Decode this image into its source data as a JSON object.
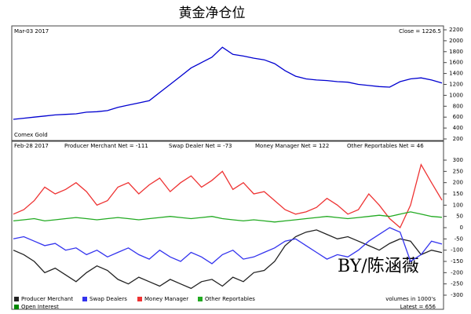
{
  "title": "黄金净仓位",
  "watermark": "BY/陈涵薇",
  "chart_data": [
    {
      "type": "line",
      "annotations": [
        "Mar-03 2017",
        "Close = 1226.5",
        "Comex Gold"
      ],
      "categories": [
        null,
        null,
        null,
        null,
        null,
        null,
        null,
        null,
        null,
        null,
        null,
        null,
        null,
        null,
        null,
        null,
        null,
        null,
        null,
        null,
        null,
        null,
        null,
        null,
        null,
        null,
        null,
        null,
        null,
        null,
        null,
        null,
        null,
        null,
        null,
        null,
        null,
        null,
        null,
        null,
        null,
        null
      ],
      "series": [
        {
          "name": "Comex Gold",
          "color": "#0000d0",
          "values": [
            560,
            580,
            600,
            620,
            640,
            650,
            660,
            690,
            700,
            720,
            780,
            820,
            860,
            900,
            1050,
            1200,
            1350,
            1500,
            1600,
            1700,
            1880,
            1750,
            1720,
            1680,
            1650,
            1580,
            1450,
            1350,
            1300,
            1280,
            1270,
            1250,
            1240,
            1200,
            1180,
            1160,
            1150,
            1250,
            1300,
            1320,
            1280,
            1226.5
          ]
        }
      ],
      "ylim": [
        200,
        2200
      ],
      "yticks": [
        200,
        400,
        600,
        800,
        1000,
        1200,
        1400,
        1600,
        1800,
        2000,
        2200
      ],
      "grid": false
    },
    {
      "type": "line",
      "annotations": [
        "Feb-28 2017",
        "Producer Merchant Net = -111",
        "Swap Dealer Net = -73",
        "Money Manager Net = 122",
        "Other Reportables Net = 46",
        "volumes in 1000's",
        "Latest = 656"
      ],
      "categories": [
        null,
        null,
        null,
        null,
        null,
        null,
        null,
        null,
        null,
        null,
        null,
        null,
        null,
        null,
        null,
        null,
        null,
        null,
        null,
        null,
        null,
        null,
        null,
        null,
        null,
        null,
        null,
        null,
        null,
        null,
        null,
        null,
        null,
        null,
        null,
        null,
        null,
        null,
        null,
        null,
        null,
        null
      ],
      "series": [
        {
          "name": "Producer Merchant",
          "color": "#222222",
          "values": [
            -100,
            -120,
            -150,
            -200,
            -180,
            -210,
            -240,
            -200,
            -170,
            -190,
            -230,
            -250,
            -220,
            -240,
            -260,
            -230,
            -250,
            -270,
            -240,
            -230,
            -260,
            -220,
            -240,
            -200,
            -190,
            -150,
            -80,
            -40,
            -20,
            -10,
            -30,
            -50,
            -40,
            -60,
            -80,
            -100,
            -70,
            -50,
            -60,
            -120,
            -100,
            -111
          ]
        },
        {
          "name": "Swap Dealers",
          "color": "#3333ee",
          "values": [
            -50,
            -40,
            -60,
            -80,
            -70,
            -100,
            -90,
            -120,
            -100,
            -130,
            -110,
            -90,
            -120,
            -140,
            -100,
            -130,
            -150,
            -110,
            -130,
            -160,
            -120,
            -100,
            -140,
            -130,
            -110,
            -90,
            -60,
            -50,
            -80,
            -110,
            -140,
            -120,
            -130,
            -100,
            -60,
            -30,
            0,
            -20,
            -150,
            -120,
            -60,
            -73
          ]
        },
        {
          "name": "Money Manager",
          "color": "#ee3333",
          "values": [
            60,
            80,
            120,
            180,
            150,
            170,
            200,
            160,
            100,
            120,
            180,
            200,
            150,
            190,
            220,
            160,
            200,
            230,
            180,
            210,
            250,
            170,
            200,
            150,
            160,
            120,
            80,
            60,
            70,
            90,
            130,
            100,
            60,
            80,
            150,
            100,
            40,
            0,
            100,
            280,
            200,
            122
          ]
        },
        {
          "name": "Other Reportables",
          "color": "#22aa22",
          "values": [
            30,
            35,
            40,
            30,
            35,
            40,
            45,
            40,
            35,
            40,
            45,
            40,
            35,
            40,
            45,
            50,
            45,
            40,
            45,
            50,
            40,
            35,
            30,
            35,
            30,
            25,
            30,
            35,
            40,
            45,
            50,
            45,
            40,
            45,
            50,
            55,
            50,
            60,
            70,
            60,
            50,
            46
          ]
        }
      ],
      "extra_legend": {
        "name": "Open Interest",
        "color": "#008800"
      },
      "ylim": [
        -300,
        300
      ],
      "yticks": [
        -300,
        -250,
        -200,
        -150,
        -100,
        -50,
        0,
        50,
        100,
        150,
        200,
        250,
        300
      ],
      "grid": false
    }
  ]
}
